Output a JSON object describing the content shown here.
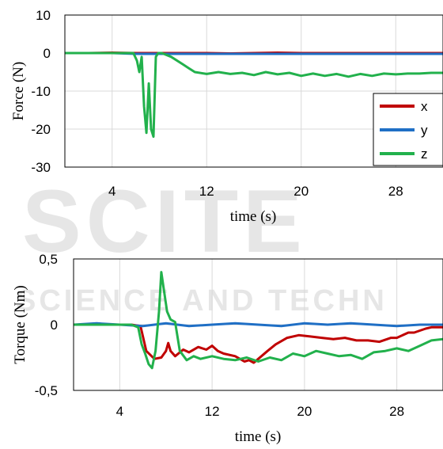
{
  "watermark": {
    "line1": "SCITE",
    "line2": "SCIENCE AND TECHN"
  },
  "chart_data": [
    {
      "type": "line",
      "xlabel": "time (s)",
      "ylabel": "Force (N)",
      "xlim": [
        0,
        32
      ],
      "ylim": [
        -30,
        10
      ],
      "xticks": [
        {
          "v": 4,
          "label": "4"
        },
        {
          "v": 12,
          "label": "12"
        },
        {
          "v": 20,
          "label": "20"
        },
        {
          "v": 28,
          "label": "28"
        }
      ],
      "yticks": [
        {
          "v": 10,
          "label": "10"
        },
        {
          "v": 0,
          "label": "0"
        },
        {
          "v": -10,
          "label": "-10"
        },
        {
          "v": -20,
          "label": "-20"
        },
        {
          "v": -30,
          "label": "-30"
        }
      ],
      "grid": true,
      "legend": "right",
      "series": [
        {
          "name": "x",
          "color": "#c00000",
          "x": [
            0,
            2,
            4,
            6,
            8,
            10,
            12,
            14,
            16,
            18,
            20,
            22,
            24,
            26,
            28,
            30,
            32
          ],
          "y": [
            0,
            0,
            0.1,
            0,
            0,
            0,
            0,
            -0.1,
            0,
            0.1,
            0,
            0,
            0,
            0,
            0,
            0,
            0
          ]
        },
        {
          "name": "y",
          "color": "#1f6fc5",
          "x": [
            0,
            2,
            4,
            6,
            8,
            10,
            12,
            14,
            16,
            18,
            20,
            22,
            24,
            26,
            28,
            30,
            32
          ],
          "y": [
            0,
            0,
            0,
            -0.2,
            -0.2,
            -0.2,
            -0.2,
            -0.2,
            -0.2,
            -0.2,
            -0.2,
            -0.2,
            -0.2,
            -0.2,
            -0.2,
            -0.2,
            -0.2
          ]
        },
        {
          "name": "z",
          "color": "#22b14c",
          "x": [
            0,
            2,
            4,
            5.8,
            6.1,
            6.3,
            6.5,
            6.7,
            6.9,
            7.1,
            7.3,
            7.5,
            7.7,
            7.9,
            8.2,
            9,
            10,
            10.5,
            11,
            12,
            13,
            14,
            15,
            16,
            17,
            18,
            19,
            20,
            21,
            22,
            23,
            24,
            25,
            26,
            27,
            28,
            29,
            30,
            31,
            32
          ],
          "y": [
            0,
            0,
            0,
            0,
            -2,
            -5,
            -1,
            -14,
            -21,
            -8,
            -20,
            -22,
            -1,
            0,
            0,
            -1,
            -3,
            -4,
            -5,
            -5.5,
            -5,
            -5.5,
            -5.2,
            -5.8,
            -5,
            -5.6,
            -5.2,
            -6,
            -5.4,
            -6,
            -5.5,
            -6.2,
            -5.5,
            -6,
            -5.4,
            -5.6,
            -5.4,
            -5.4,
            -5.2,
            -5.2
          ]
        }
      ]
    },
    {
      "type": "line",
      "xlabel": "time (s)",
      "ylabel": "Torque (Nm)",
      "xlim": [
        0,
        32
      ],
      "ylim": [
        -0.5,
        0.5
      ],
      "xticks": [
        {
          "v": 4,
          "label": "4"
        },
        {
          "v": 12,
          "label": "12"
        },
        {
          "v": 20,
          "label": "20"
        },
        {
          "v": 28,
          "label": "28"
        }
      ],
      "yticks": [
        {
          "v": 0.5,
          "label": "0,5"
        },
        {
          "v": 0,
          "label": "0"
        },
        {
          "v": -0.5,
          "label": "-0,5"
        }
      ],
      "grid": true,
      "legend": "none",
      "series": [
        {
          "name": "x",
          "color": "#c00000",
          "x": [
            0,
            2,
            4,
            5,
            5.8,
            6.3,
            7,
            7.6,
            8,
            8.2,
            8.4,
            8.8,
            9.5,
            10,
            10.8,
            11.5,
            12,
            12.5,
            13,
            14,
            14.8,
            15.2,
            15.6,
            16,
            16.8,
            17.5,
            18.5,
            19.5,
            20.5,
            21.5,
            22.5,
            23.5,
            24.5,
            25.5,
            26.5,
            27.5,
            28,
            29,
            29.5,
            30.5,
            31,
            32
          ],
          "y": [
            0,
            0,
            0,
            0,
            -0.01,
            -0.2,
            -0.26,
            -0.25,
            -0.2,
            -0.14,
            -0.2,
            -0.24,
            -0.19,
            -0.21,
            -0.17,
            -0.19,
            -0.16,
            -0.2,
            -0.22,
            -0.24,
            -0.28,
            -0.27,
            -0.29,
            -0.26,
            -0.2,
            -0.15,
            -0.1,
            -0.08,
            -0.09,
            -0.1,
            -0.11,
            -0.1,
            -0.12,
            -0.12,
            -0.13,
            -0.1,
            -0.1,
            -0.06,
            -0.06,
            -0.03,
            -0.02,
            -0.02
          ]
        },
        {
          "name": "y",
          "color": "#1f6fc5",
          "x": [
            0,
            2,
            4,
            6,
            7,
            8,
            10,
            12,
            14,
            16,
            18,
            20,
            22,
            24,
            26,
            28,
            30,
            32
          ],
          "y": [
            0,
            0.01,
            0,
            -0.01,
            0,
            0.01,
            -0.01,
            0,
            0.01,
            0,
            -0.01,
            0.01,
            0,
            0.01,
            0,
            -0.01,
            0,
            0
          ]
        },
        {
          "name": "z",
          "color": "#22b14c",
          "x": [
            0,
            2,
            4,
            5,
            5.6,
            5.9,
            6.2,
            6.5,
            6.8,
            7.1,
            7.4,
            7.6,
            7.8,
            8.1,
            8.4,
            8.8,
            9.2,
            9.8,
            10.4,
            11,
            12,
            13,
            14,
            15,
            16,
            17,
            18,
            19,
            20,
            21,
            22,
            23,
            24,
            25,
            26,
            27,
            28,
            29,
            30,
            31,
            32
          ],
          "y": [
            0,
            0,
            0,
            0,
            -0.02,
            -0.15,
            -0.22,
            -0.3,
            -0.33,
            -0.2,
            0.1,
            0.4,
            0.28,
            0.1,
            0.04,
            0.02,
            -0.2,
            -0.27,
            -0.24,
            -0.26,
            -0.24,
            -0.26,
            -0.27,
            -0.25,
            -0.28,
            -0.25,
            -0.27,
            -0.22,
            -0.24,
            -0.2,
            -0.22,
            -0.24,
            -0.23,
            -0.26,
            -0.21,
            -0.2,
            -0.18,
            -0.2,
            -0.16,
            -0.12,
            -0.11
          ]
        }
      ]
    }
  ]
}
